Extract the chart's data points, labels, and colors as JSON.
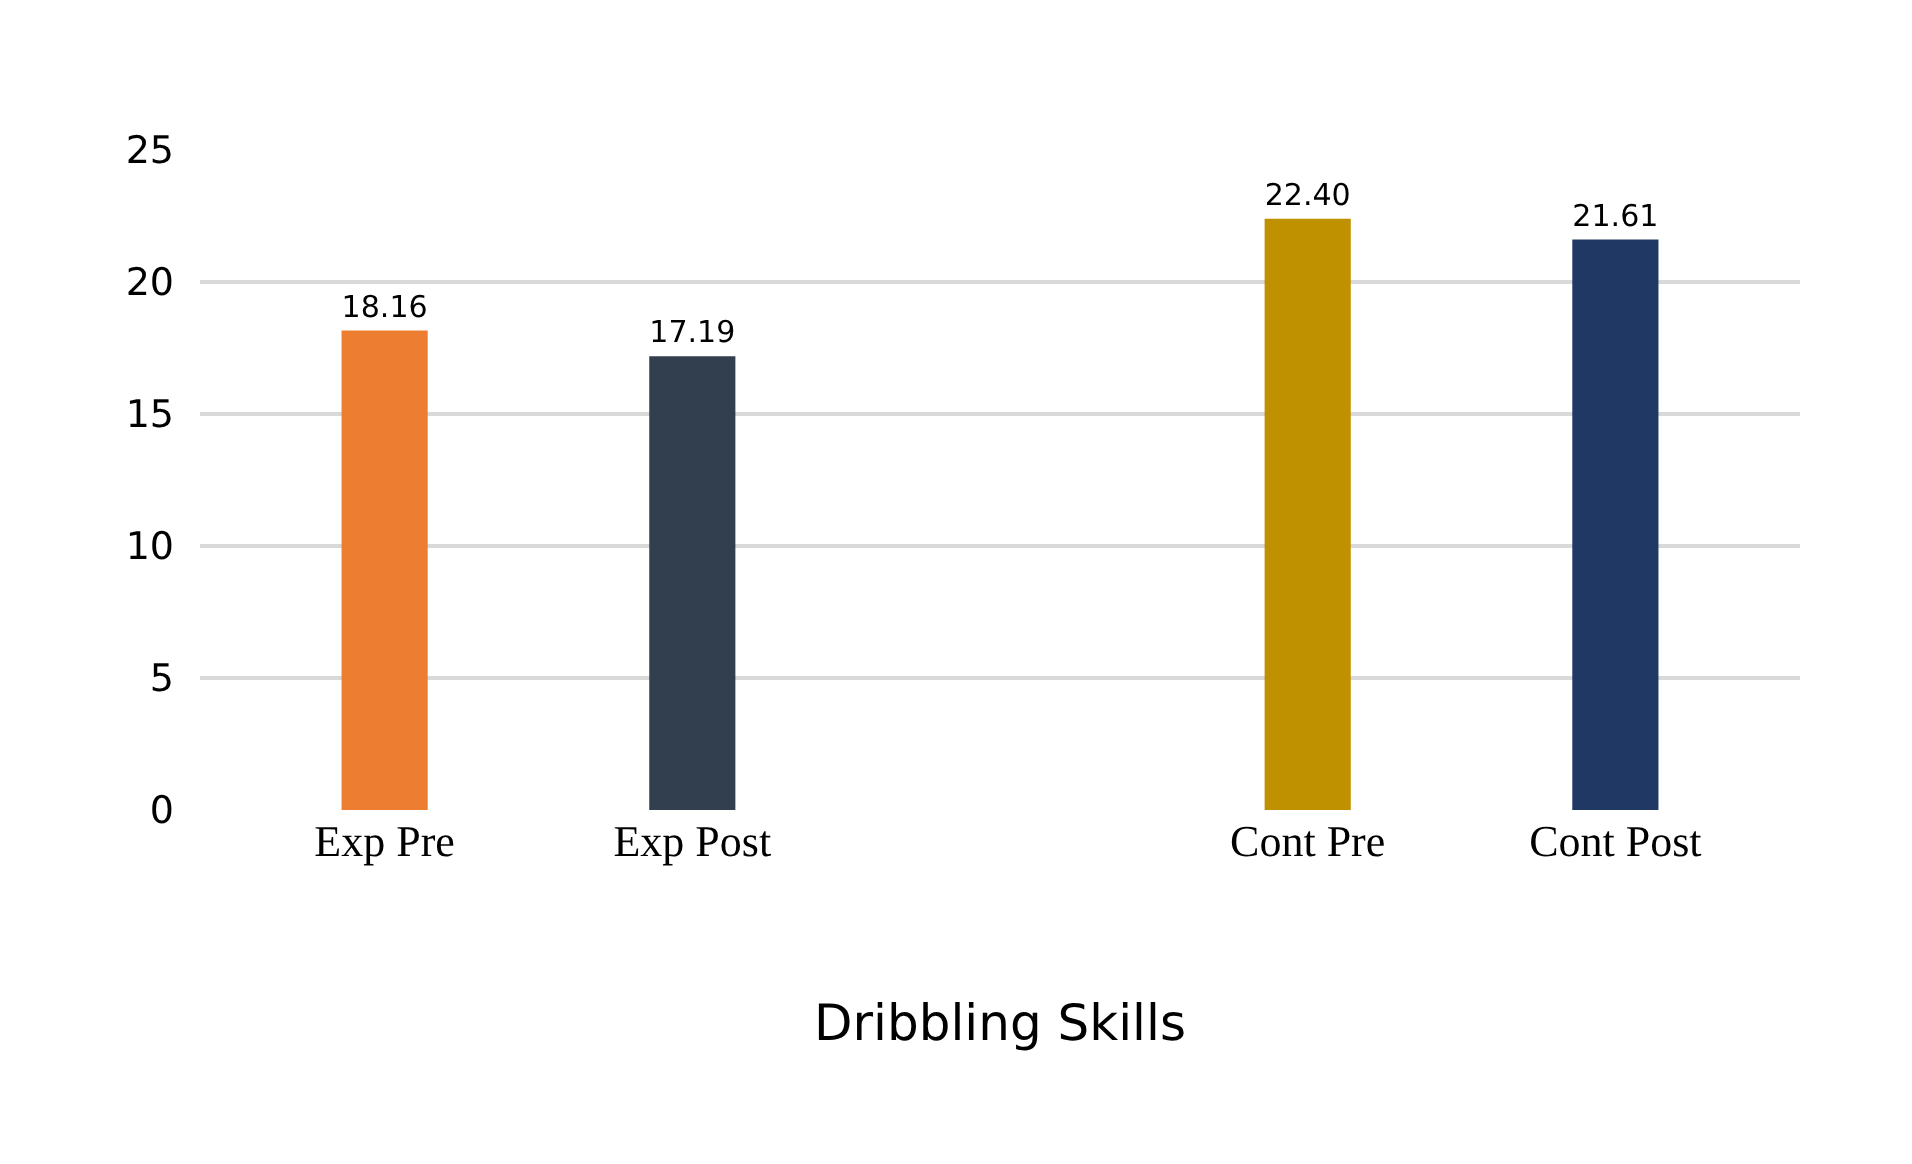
{
  "chart_data": {
    "type": "bar",
    "xlabel": "Dribbling Skills",
    "categories": [
      "Exp Pre",
      "Exp Post",
      null,
      "Cont Pre",
      "Cont Post"
    ],
    "values": [
      18.16,
      17.19,
      null,
      22.4,
      21.61
    ],
    "colors": [
      "#ed7d31",
      "#323f4f",
      "#000000",
      "#bf9000",
      "#1f3864"
    ],
    "value_labels": [
      "18.16",
      "17.19",
      null,
      "22.40",
      "21.61"
    ],
    "ylim": [
      0,
      25
    ],
    "yticks": [
      0,
      5,
      10,
      15,
      20,
      25
    ],
    "grid": "y",
    "legend": false
  }
}
